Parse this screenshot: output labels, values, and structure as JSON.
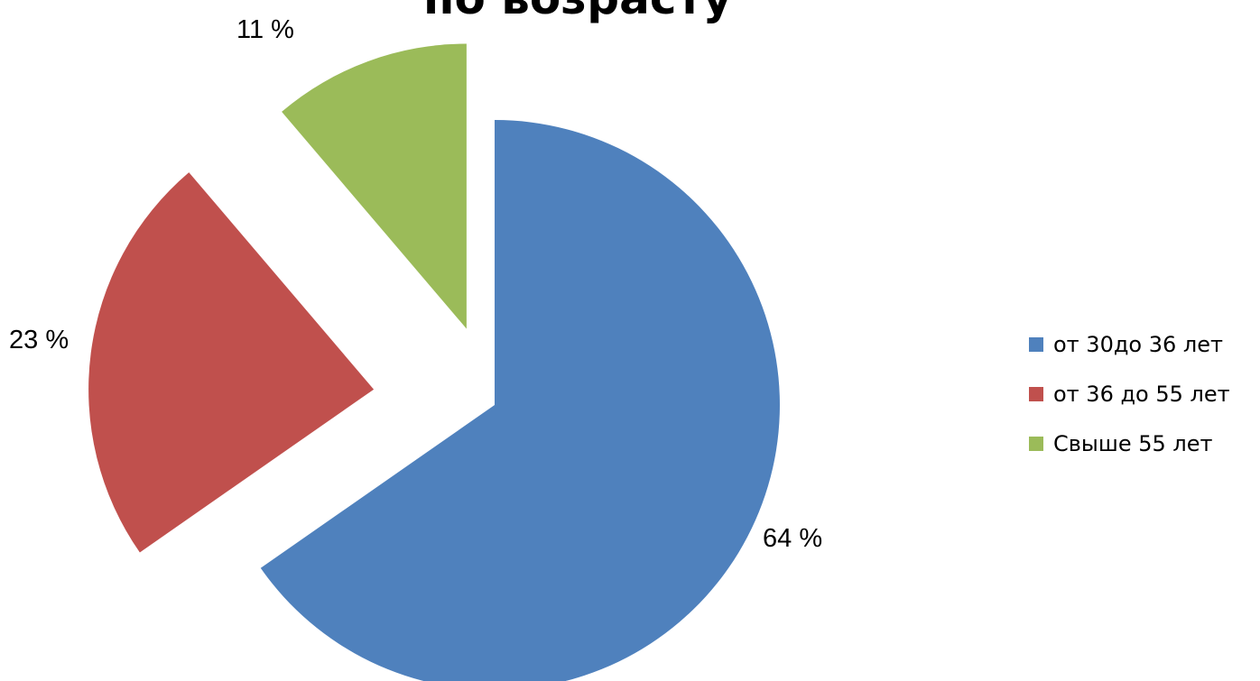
{
  "chart_data": {
    "type": "pie",
    "title": "по возрасту",
    "categories": [
      "от 30до 36 лет",
      "от 36 до 55 лет",
      "Свыше 55 лет"
    ],
    "values": [
      64,
      23,
      11
    ],
    "data_labels": [
      "64 %",
      "23 %",
      "11 %"
    ],
    "colors": [
      "#4F81BD",
      "#C0504D",
      "#9BBB59"
    ],
    "exploded": true,
    "legend_position": "right"
  }
}
